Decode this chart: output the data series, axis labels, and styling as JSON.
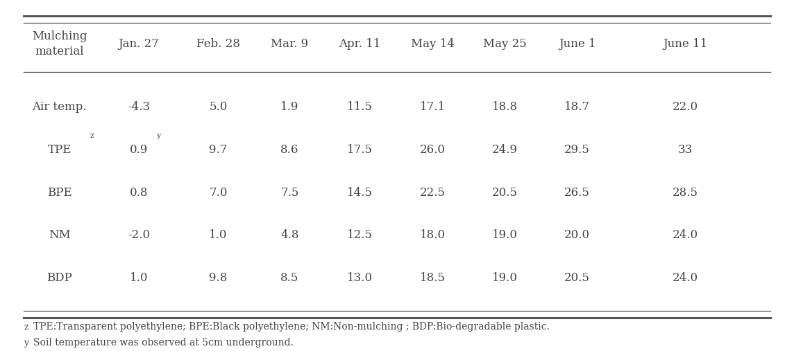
{
  "columns": [
    "Mulching\nmaterial",
    "Jan. 27",
    "Feb. 28",
    "Mar. 9",
    "Apr. 11",
    "May 14",
    "May 25",
    "June 1",
    "June 11"
  ],
  "rows": [
    {
      "label": "Air temp.",
      "values": [
        "-4.3",
        "5.0",
        "1.9",
        "11.5",
        "17.1",
        "18.8",
        "18.7",
        "22.0"
      ],
      "superscript_label": "",
      "superscript_val": ""
    },
    {
      "label": "TPE",
      "values": [
        "0.9",
        "9.7",
        "8.6",
        "17.5",
        "26.0",
        "24.9",
        "29.5",
        "33"
      ],
      "superscript_label": "z",
      "superscript_val": "y"
    },
    {
      "label": "BPE",
      "values": [
        "0.8",
        "7.0",
        "7.5",
        "14.5",
        "22.5",
        "20.5",
        "26.5",
        "28.5"
      ],
      "superscript_label": "",
      "superscript_val": ""
    },
    {
      "label": "NM",
      "values": [
        "-2.0",
        "1.0",
        "4.8",
        "12.5",
        "18.0",
        "19.0",
        "20.0",
        "24.0"
      ],
      "superscript_label": "",
      "superscript_val": ""
    },
    {
      "label": "BDP",
      "values": [
        "1.0",
        "9.8",
        "8.5",
        "13.0",
        "18.5",
        "19.0",
        "20.5",
        "24.0"
      ],
      "superscript_label": "",
      "superscript_val": ""
    }
  ],
  "footnote1_sup": "z",
  "footnote1_text": "TPE:Transparent polyethylene; BPE:Black polyethylene; NM:Non-mulching ; BDP:Bio-degradable plastic.",
  "footnote2_sup": "y",
  "footnote2_text": "Soil temperature was observed at 5cm underground.",
  "background_color": "#ffffff",
  "text_color": "#444444",
  "line_color": "#555555",
  "font_size": 12,
  "footnote_font_size": 10
}
